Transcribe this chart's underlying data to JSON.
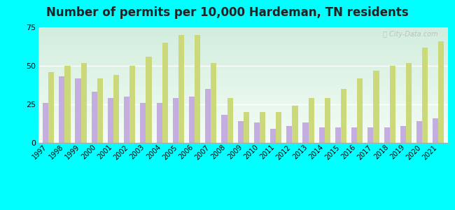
{
  "years": [
    1997,
    1998,
    1999,
    2000,
    2001,
    2002,
    2003,
    2004,
    2005,
    2006,
    2007,
    2008,
    2009,
    2010,
    2011,
    2012,
    2013,
    2014,
    2015,
    2016,
    2017,
    2018,
    2019,
    2020,
    2021
  ],
  "hardeman": [
    26,
    43,
    42,
    33,
    29,
    30,
    26,
    26,
    29,
    30,
    35,
    18,
    14,
    13,
    9,
    11,
    13,
    10,
    10,
    10,
    10,
    10,
    11,
    14,
    16
  ],
  "tennessee": [
    46,
    50,
    52,
    42,
    44,
    50,
    56,
    65,
    70,
    70,
    52,
    29,
    20,
    20,
    20,
    24,
    29,
    29,
    35,
    42,
    47,
    50,
    52,
    62,
    66
  ],
  "hardeman_color": "#c4aee0",
  "tennessee_color": "#ccd97a",
  "title": "Number of permits per 10,000 Hardeman, TN residents",
  "title_fontsize": 12,
  "plot_bg_top": "#d4ede0",
  "plot_bg_bottom": "#f0f8f0",
  "outer_bg": "#00ffff",
  "ylim": [
    0,
    75
  ],
  "yticks": [
    0,
    25,
    50,
    75
  ],
  "bar_width": 0.35
}
